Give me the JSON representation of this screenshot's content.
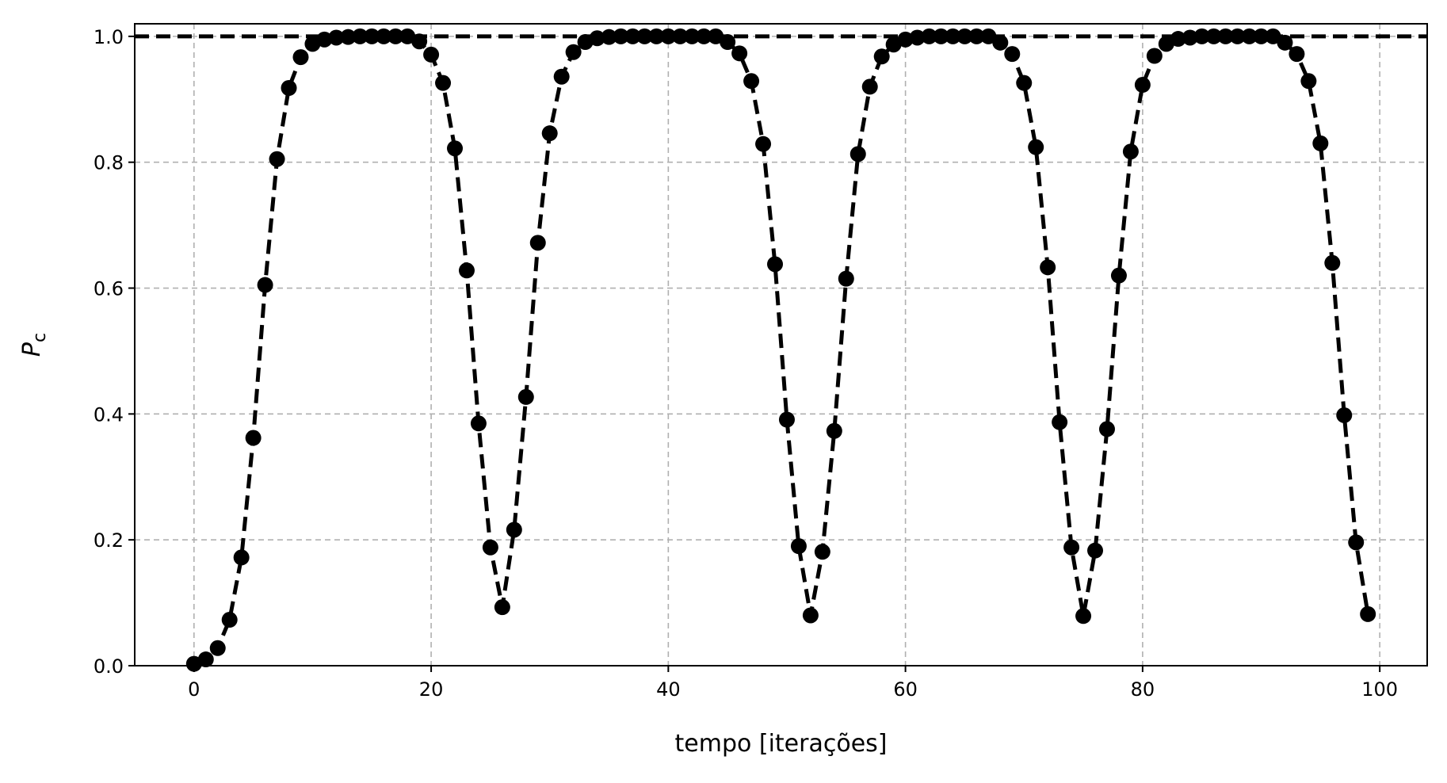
{
  "chart_data": {
    "type": "line",
    "xlabel": "tempo [iterações]",
    "ylabel": "P",
    "ylabel_subscript": "c",
    "xlim": [
      -5,
      104
    ],
    "ylim": [
      0,
      1.02
    ],
    "xticks": [
      0,
      20,
      40,
      60,
      80,
      100
    ],
    "yticks": [
      0.0,
      0.2,
      0.4,
      0.6,
      0.8,
      1.0
    ],
    "ytick_labels": [
      "0.0",
      "0.2",
      "0.4",
      "0.6",
      "0.8",
      "1.0"
    ],
    "grid": true,
    "reference_line": {
      "y": 1.0,
      "style": "dashed",
      "color": "#000000"
    },
    "series": [
      {
        "color": "#000000",
        "line_style": "dashed",
        "marker": "circle",
        "x": [
          0,
          1,
          2,
          3,
          4,
          5,
          6,
          7,
          8,
          9,
          10,
          11,
          12,
          13,
          14,
          15,
          16,
          17,
          18,
          19,
          20,
          21,
          22,
          23,
          24,
          25,
          26,
          27,
          28,
          29,
          30,
          31,
          32,
          33,
          34,
          35,
          36,
          37,
          38,
          39,
          40,
          41,
          42,
          43,
          44,
          45,
          46,
          47,
          48,
          49,
          50,
          51,
          52,
          53,
          54,
          55,
          56,
          57,
          58,
          59,
          60,
          61,
          62,
          63,
          64,
          65,
          66,
          67,
          68,
          69,
          70,
          71,
          72,
          73,
          74,
          75,
          76,
          77,
          78,
          79,
          80,
          81,
          82,
          83,
          84,
          85,
          86,
          87,
          88,
          89,
          90,
          91,
          92,
          93,
          94,
          95,
          96,
          97,
          98,
          99
        ],
        "y": [
          0.003,
          0.01,
          0.028,
          0.073,
          0.172,
          0.362,
          0.605,
          0.805,
          0.918,
          0.967,
          0.988,
          0.995,
          0.998,
          0.999,
          1.0,
          1.0,
          1.0,
          1.0,
          1.0,
          0.992,
          0.971,
          0.926,
          0.822,
          0.628,
          0.385,
          0.188,
          0.093,
          0.216,
          0.427,
          0.672,
          0.846,
          0.936,
          0.975,
          0.991,
          0.997,
          0.999,
          1.0,
          1.0,
          1.0,
          1.0,
          1.0,
          1.0,
          1.0,
          1.0,
          1.0,
          0.991,
          0.973,
          0.929,
          0.829,
          0.638,
          0.391,
          0.19,
          0.08,
          0.181,
          0.373,
          0.615,
          0.813,
          0.92,
          0.968,
          0.987,
          0.995,
          0.998,
          1.0,
          1.0,
          1.0,
          1.0,
          1.0,
          1.0,
          0.99,
          0.972,
          0.926,
          0.824,
          0.633,
          0.387,
          0.188,
          0.079,
          0.183,
          0.376,
          0.62,
          0.817,
          0.923,
          0.969,
          0.988,
          0.996,
          0.998,
          1.0,
          1.0,
          1.0,
          1.0,
          1.0,
          1.0,
          1.0,
          0.99,
          0.972,
          0.929,
          0.83,
          0.64,
          0.398,
          0.196,
          0.082
        ]
      }
    ]
  }
}
